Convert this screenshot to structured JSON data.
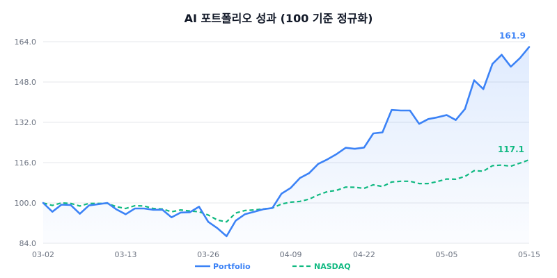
{
  "colors": {
    "portfolio": "#3b82f6",
    "nasdaq": "#10b981",
    "grid": "#e5e7eb",
    "text": "#6b7280",
    "title": "#111827"
  },
  "chart_data": {
    "type": "line",
    "title": "AI 포트폴리오 성과 (100 기준 정규화)",
    "xlabel": "",
    "ylabel": "",
    "ylim": [
      84,
      164
    ],
    "yticks": [
      "164.0",
      "148.0",
      "132.0",
      "116.0",
      "100.0",
      "84.0"
    ],
    "ytick_values": [
      164,
      148,
      132,
      116,
      100,
      84
    ],
    "xticks": [
      "03-02",
      "03-13",
      "03-26",
      "04-09",
      "04-22",
      "05-05",
      "05-15"
    ],
    "xtick_index": [
      0,
      10,
      20,
      30,
      40,
      50,
      60
    ],
    "grid": true,
    "legend_position": "bottom-center",
    "end_labels": {
      "portfolio": "161.9",
      "nasdaq": "117.1"
    },
    "series": [
      {
        "name": "Portfolio",
        "style": "solid",
        "area_fill": true,
        "values": [
          100.0,
          96.5,
          99.3,
          99.2,
          95.7,
          99.0,
          99.5,
          100.0,
          97.4,
          95.5,
          97.8,
          97.8,
          97.3,
          97.3,
          94.3,
          96.2,
          96.3,
          98.5,
          92.5,
          90.0,
          86.8,
          93.0,
          95.5,
          96.5,
          97.5,
          98.0,
          103.7,
          106.0,
          109.9,
          111.8,
          115.5,
          117.3,
          119.4,
          121.9,
          121.5,
          122.0,
          127.6,
          128.0,
          136.9,
          136.7,
          136.7,
          131.4,
          133.3,
          134.0,
          134.9,
          132.9,
          137.3,
          148.7,
          145.2,
          155.2,
          158.8,
          154.1,
          157.5,
          161.9
        ]
      },
      {
        "name": "NASDAQ",
        "style": "dashed",
        "area_fill": false,
        "values": [
          100.0,
          99.0,
          100.0,
          99.8,
          98.8,
          99.8,
          99.8,
          99.8,
          98.5,
          97.8,
          98.9,
          98.8,
          97.8,
          97.6,
          96.5,
          97.2,
          96.8,
          96.5,
          95.2,
          93.2,
          92.5,
          96.0,
          97.0,
          97.2,
          97.6,
          98.0,
          99.6,
          100.3,
          100.6,
          101.5,
          103.2,
          104.5,
          105.0,
          106.3,
          106.2,
          105.8,
          107.2,
          106.5,
          108.3,
          108.6,
          108.6,
          107.7,
          107.7,
          108.5,
          109.5,
          109.4,
          110.5,
          112.8,
          112.6,
          114.8,
          115.0,
          114.6,
          115.8,
          117.1
        ]
      }
    ]
  }
}
